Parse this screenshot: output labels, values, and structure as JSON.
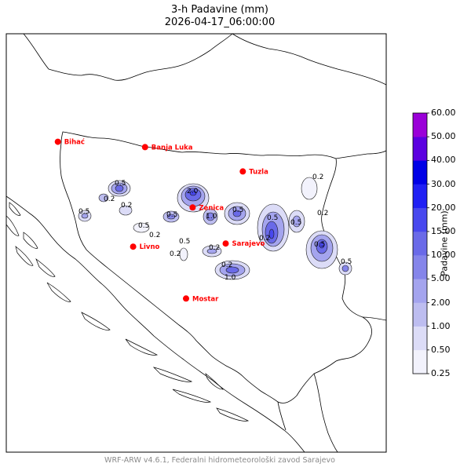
{
  "title_line1": "3-h Padavine (mm)",
  "title_line2": "2026-04-17_06:00:00",
  "footer": "WRF-ARW v4.6.1, Federalni hidrometeorološki zavod Sarajevo",
  "colorbar": {
    "title": "Padavine (mm)",
    "levels": [
      "0.25",
      "0.50",
      "1.00",
      "2.00",
      "5.00",
      "10.00",
      "15.00",
      "20.00",
      "30.00",
      "40.00",
      "50.00",
      "60.00"
    ],
    "colors": [
      "#f2f2fc",
      "#dcdcf7",
      "#bdbdf0",
      "#a4a4ee",
      "#8585ea",
      "#6a6ae8",
      "#4848ee",
      "#2020f4",
      "#0000e6",
      "#5b00e0",
      "#9a00d8",
      "#c000c0"
    ]
  },
  "cities": [
    {
      "name": "Bihać",
      "lon": 15.87,
      "lat": 44.82
    },
    {
      "name": "Banja Luka",
      "lon": 17.19,
      "lat": 44.77
    },
    {
      "name": "Tuzla",
      "lon": 18.67,
      "lat": 44.54
    },
    {
      "name": "Zenica",
      "lon": 17.91,
      "lat": 44.2
    },
    {
      "name": "Livno",
      "lon": 17.01,
      "lat": 43.83
    },
    {
      "name": "Sarajevo",
      "lon": 18.41,
      "lat": 43.86
    },
    {
      "name": "Mostar",
      "lon": 17.81,
      "lat": 43.34
    }
  ],
  "contour_labels": [
    "0.2",
    "0.5",
    "1.0",
    "2.0"
  ]
}
